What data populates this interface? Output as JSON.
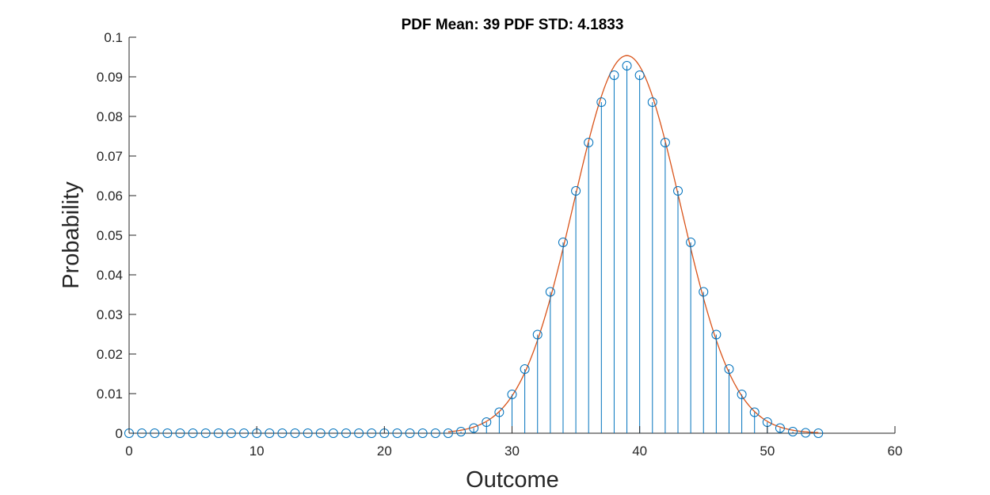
{
  "chart_data": {
    "type": "scatter",
    "title": "PDF Mean: 39  PDF STD: 4.1833",
    "xlabel": "Outcome",
    "ylabel": "Probability",
    "xlim": [
      0,
      60
    ],
    "ylim": [
      0,
      0.1
    ],
    "x_ticks": [
      0,
      10,
      20,
      30,
      40,
      50,
      60
    ],
    "x_tick_labels": [
      "0",
      "10",
      "20",
      "30",
      "40",
      "50",
      "60"
    ],
    "y_ticks": [
      0,
      0.01,
      0.02,
      0.03,
      0.04,
      0.05,
      0.06,
      0.07,
      0.08,
      0.09,
      0.1
    ],
    "y_tick_labels": [
      "0",
      "0.01",
      "0.02",
      "0.03",
      "0.04",
      "0.05",
      "0.06",
      "0.07",
      "0.08",
      "0.09",
      "0.1"
    ],
    "grid": false,
    "series": [
      {
        "kind": "stem",
        "marker": "circle",
        "color": "#0072BD",
        "x": [
          0,
          1,
          2,
          3,
          4,
          5,
          6,
          7,
          8,
          9,
          10,
          11,
          12,
          13,
          14,
          15,
          16,
          17,
          18,
          19,
          20,
          21,
          22,
          23,
          24,
          25,
          26,
          27,
          28,
          29,
          30,
          31,
          32,
          33,
          34,
          35,
          36,
          37,
          38,
          39,
          40,
          41,
          42,
          43,
          44,
          45,
          46,
          47,
          48,
          49,
          50,
          51,
          52,
          53,
          54
        ],
        "y": [
          0,
          0,
          0,
          0,
          0,
          0,
          0,
          0,
          0,
          0,
          0,
          0,
          0,
          0,
          0,
          0,
          0,
          0,
          0,
          0,
          0,
          0,
          0,
          0,
          0,
          0,
          0.0004,
          0.0013,
          0.0028,
          0.0053,
          0.0098,
          0.0162,
          0.0249,
          0.0357,
          0.0482,
          0.0612,
          0.0734,
          0.0836,
          0.0904,
          0.0928,
          0.0904,
          0.0836,
          0.0734,
          0.0612,
          0.0482,
          0.0357,
          0.0249,
          0.0162,
          0.0098,
          0.0053,
          0.0028,
          0.0013,
          0.0004,
          0.0001,
          0
        ]
      },
      {
        "kind": "line",
        "color": "#D95319",
        "curve": "normal",
        "mean": 39,
        "std": 4.1833,
        "x_range": [
          25,
          54
        ]
      }
    ]
  }
}
